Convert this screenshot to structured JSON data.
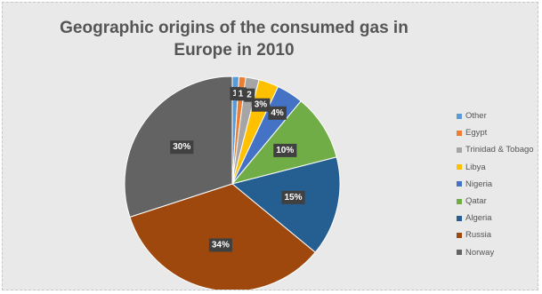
{
  "chart_data": {
    "type": "pie",
    "title": "Geographic origins of the consumed gas in Europe in 2010",
    "legend_position": "right",
    "slices": [
      {
        "name": "Other",
        "value": 1,
        "label": "1",
        "color": "#5b9bd5"
      },
      {
        "name": "Egypt",
        "value": 1,
        "label": "1",
        "color": "#ed7d31"
      },
      {
        "name": "Trinidad & Tobago",
        "value": 2,
        "label": "2",
        "color": "#a5a5a5"
      },
      {
        "name": "Libya",
        "value": 3,
        "label": "3%",
        "color": "#ffc000"
      },
      {
        "name": "Nigeria",
        "value": 4,
        "label": "4%",
        "color": "#4472c4"
      },
      {
        "name": "Qatar",
        "value": 10,
        "label": "10%",
        "color": "#70ad47"
      },
      {
        "name": "Algeria",
        "value": 15,
        "label": "15%",
        "color": "#255e91"
      },
      {
        "name": "Russia",
        "value": 34,
        "label": "34%",
        "color": "#9e480e"
      },
      {
        "name": "Norway",
        "value": 30,
        "label": "30%",
        "color": "#636363"
      }
    ]
  }
}
